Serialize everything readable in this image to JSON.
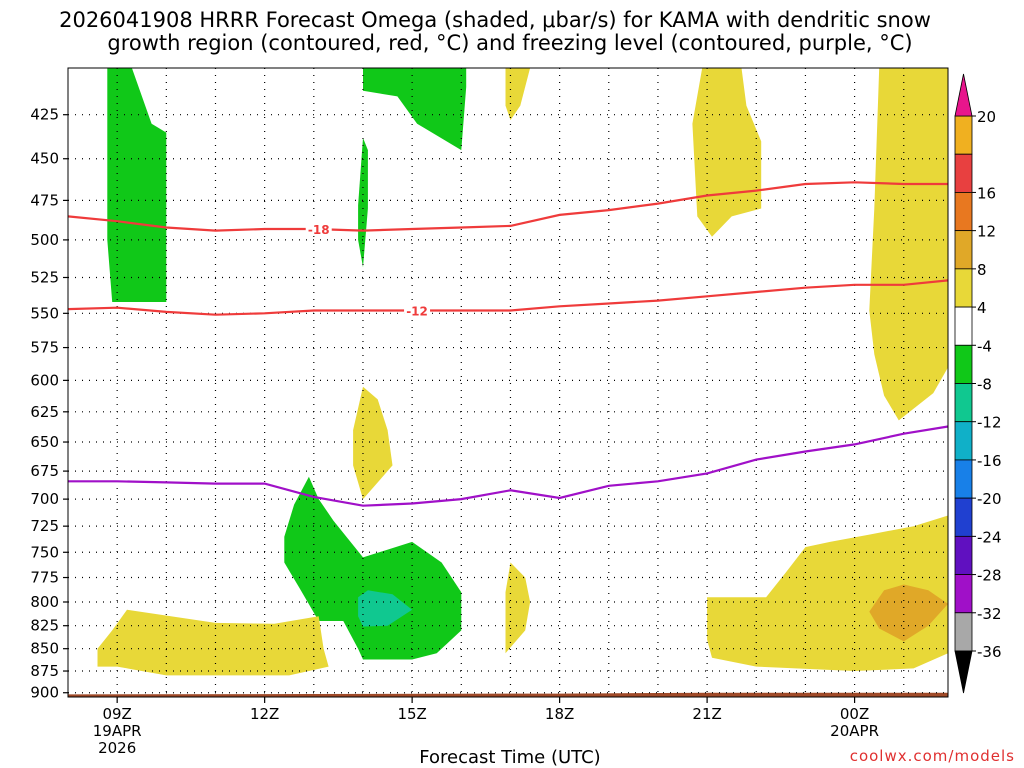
{
  "chart_data": {
    "type": "contour",
    "title_line1": "2026041908 HRRR Forecast Omega (shaded, μbar/s) for KAMA with dendritic snow",
    "title_line2": "growth region (contoured, red, °C) and freezing level (contoured, purple, °C)",
    "xlabel": "Forecast Time (UTC)",
    "credit": "coolwx.com/models",
    "x_range_hours": [
      8,
      25.9
    ],
    "y_range_hpa": [
      400,
      905
    ],
    "x_ticks": [
      {
        "hour": 9,
        "lines": [
          "09Z",
          "19APR",
          "2026"
        ]
      },
      {
        "hour": 12,
        "lines": [
          "12Z"
        ]
      },
      {
        "hour": 15,
        "lines": [
          "15Z"
        ]
      },
      {
        "hour": 18,
        "lines": [
          "18Z"
        ]
      },
      {
        "hour": 21,
        "lines": [
          "21Z"
        ]
      },
      {
        "hour": 24,
        "lines": [
          "00Z",
          "20APR"
        ]
      }
    ],
    "y_ticks": [
      "425",
      "450",
      "475",
      "500",
      "525",
      "550",
      "575",
      "600",
      "625",
      "650",
      "675",
      "700",
      "725",
      "750",
      "775",
      "800",
      "825",
      "850",
      "875",
      "900"
    ],
    "colorbar": {
      "labels": [
        "20",
        "16",
        "12",
        "8",
        "4",
        "-4",
        "-8",
        "-12",
        "-16",
        "-20",
        "-24",
        "-28",
        "-32",
        "-36"
      ],
      "colors": [
        "#f0b020",
        "#e84040",
        "#e87820",
        "#e0a828",
        "#e8d838",
        "#ffffff",
        "#10c818",
        "#10c890",
        "#10b0c8",
        "#1880e8",
        "#2040d0",
        "#6010c0",
        "#a010c8",
        "#a8a8a8"
      ],
      "top_arrow_color": "#e8158c",
      "bottom_arrow_color": "#000000"
    },
    "contours": [
      {
        "label": "-18",
        "color": "#ef3b3b",
        "kind": "dendritic",
        "points": [
          [
            8,
            485
          ],
          [
            9,
            488
          ],
          [
            10,
            492
          ],
          [
            11,
            494
          ],
          [
            12,
            493
          ],
          [
            13,
            493
          ],
          [
            14,
            494
          ],
          [
            15,
            493
          ],
          [
            16,
            492
          ],
          [
            17,
            491
          ],
          [
            18,
            484
          ],
          [
            19,
            481
          ],
          [
            20,
            477
          ],
          [
            21,
            472
          ],
          [
            22,
            469
          ],
          [
            23,
            465
          ],
          [
            24,
            464
          ],
          [
            25,
            465
          ],
          [
            25.9,
            465
          ]
        ],
        "label_at": [
          13.1,
          493
        ]
      },
      {
        "label": "-12",
        "color": "#ef3b3b",
        "kind": "dendritic",
        "points": [
          [
            8,
            547
          ],
          [
            9,
            546
          ],
          [
            10,
            549
          ],
          [
            11,
            551
          ],
          [
            12,
            550
          ],
          [
            13,
            548
          ],
          [
            14,
            548
          ],
          [
            15,
            548
          ],
          [
            16,
            548
          ],
          [
            17,
            548
          ],
          [
            18,
            545
          ],
          [
            19,
            543
          ],
          [
            20,
            541
          ],
          [
            21,
            538
          ],
          [
            22,
            535
          ],
          [
            23,
            532
          ],
          [
            24,
            530
          ],
          [
            25,
            530
          ],
          [
            25.9,
            527
          ]
        ],
        "label_at": [
          15.1,
          548
        ]
      },
      {
        "label": "",
        "color": "#a010c8",
        "kind": "freezing",
        "points": [
          [
            8,
            684
          ],
          [
            9,
            684
          ],
          [
            10,
            685
          ],
          [
            11,
            686
          ],
          [
            12,
            686
          ],
          [
            13,
            698
          ],
          [
            14,
            706
          ],
          [
            15,
            704
          ],
          [
            16,
            700
          ],
          [
            17,
            692
          ],
          [
            18,
            699
          ],
          [
            19,
            688
          ],
          [
            20,
            684
          ],
          [
            21,
            677
          ],
          [
            22,
            665
          ],
          [
            23,
            658
          ],
          [
            24,
            652
          ],
          [
            25,
            643
          ],
          [
            25.9,
            637
          ]
        ]
      }
    ],
    "fill_regions": [
      {
        "level": "-8 to -4",
        "color": "#10c818",
        "points": [
          [
            8.8,
            400
          ],
          [
            9.3,
            400
          ],
          [
            9.7,
            430
          ],
          [
            10,
            435
          ],
          [
            10,
            542
          ],
          [
            8.9,
            542
          ],
          [
            8.8,
            500
          ]
        ]
      },
      {
        "level": "-8 to -4",
        "color": "#10c818",
        "points": [
          [
            13.9,
            478
          ],
          [
            14,
            438
          ],
          [
            14.1,
            445
          ],
          [
            14.1,
            480
          ],
          [
            14,
            518
          ],
          [
            13.9,
            500
          ]
        ]
      },
      {
        "level": "-8 to -4",
        "color": "#10c818",
        "points": [
          [
            14,
            400
          ],
          [
            16.1,
            400
          ],
          [
            16.1,
            410
          ],
          [
            16,
            445
          ],
          [
            15.1,
            430
          ],
          [
            14.7,
            415
          ],
          [
            14,
            412
          ]
        ]
      },
      {
        "level": "-8 to -4",
        "color": "#10c818",
        "points": [
          [
            12.4,
            735
          ],
          [
            12.6,
            705
          ],
          [
            12.9,
            680
          ],
          [
            13.1,
            700
          ],
          [
            13.4,
            720
          ],
          [
            14,
            755
          ],
          [
            15,
            740
          ],
          [
            15.6,
            760
          ],
          [
            16,
            790
          ],
          [
            16,
            830
          ],
          [
            15.5,
            855
          ],
          [
            15,
            862
          ],
          [
            14,
            862
          ],
          [
            13.9,
            850
          ],
          [
            13.6,
            820
          ],
          [
            13.1,
            820
          ],
          [
            12.7,
            785
          ],
          [
            12.4,
            760
          ]
        ]
      },
      {
        "level": "-12 to -8",
        "color": "#10c890",
        "points": [
          [
            13.9,
            795
          ],
          [
            14.1,
            788
          ],
          [
            14.6,
            792
          ],
          [
            15,
            808
          ],
          [
            14.5,
            825
          ],
          [
            14,
            826
          ],
          [
            13.9,
            815
          ]
        ]
      },
      {
        "level": "4 to 8",
        "color": "#e8d838",
        "points": [
          [
            25.9,
            400
          ],
          [
            24.5,
            400
          ],
          [
            24.4,
            480
          ],
          [
            24.3,
            548
          ],
          [
            24.4,
            580
          ],
          [
            24.6,
            612
          ],
          [
            24.9,
            632
          ],
          [
            25.6,
            610
          ],
          [
            25.9,
            590
          ]
        ]
      },
      {
        "level": "4 to 8",
        "color": "#e8d838",
        "points": [
          [
            21.7,
            400
          ],
          [
            21.8,
            420
          ],
          [
            22.1,
            440
          ],
          [
            22.1,
            480
          ],
          [
            21.5,
            485
          ],
          [
            21.1,
            498
          ],
          [
            20.8,
            485
          ],
          [
            20.7,
            430
          ],
          [
            20.9,
            400
          ]
        ]
      },
      {
        "level": "4 to 8",
        "color": "#e8d838",
        "points": [
          [
            16.9,
            400
          ],
          [
            17.4,
            400
          ],
          [
            17.2,
            420
          ],
          [
            17,
            428
          ],
          [
            16.9,
            420
          ]
        ]
      },
      {
        "level": "4 to 8",
        "color": "#e8d838",
        "points": [
          [
            13.8,
            640
          ],
          [
            14,
            605
          ],
          [
            14.3,
            615
          ],
          [
            14.5,
            640
          ],
          [
            14.6,
            670
          ],
          [
            14.2,
            690
          ],
          [
            14,
            700
          ],
          [
            13.8,
            670
          ]
        ]
      },
      {
        "level": "4 to 8",
        "color": "#e8d838",
        "points": [
          [
            16.9,
            790
          ],
          [
            17,
            760
          ],
          [
            17.3,
            775
          ],
          [
            17.4,
            800
          ],
          [
            17.3,
            830
          ],
          [
            16.9,
            855
          ],
          [
            16.9,
            820
          ]
        ]
      },
      {
        "level": "4 to 8",
        "color": "#e8d838",
        "points": [
          [
            8.6,
            850
          ],
          [
            8.9,
            830
          ],
          [
            9.2,
            808
          ],
          [
            11,
            822
          ],
          [
            12.2,
            823
          ],
          [
            13.1,
            815
          ],
          [
            13.2,
            850
          ],
          [
            13.3,
            870
          ],
          [
            12.5,
            880
          ],
          [
            10,
            880
          ],
          [
            9,
            870
          ],
          [
            8.6,
            870
          ]
        ]
      },
      {
        "level": "4 to 8",
        "color": "#e8d838",
        "points": [
          [
            21,
            795
          ],
          [
            22.2,
            795
          ],
          [
            22.6,
            770
          ],
          [
            23,
            745
          ],
          [
            23.5,
            740
          ],
          [
            24.3,
            733
          ],
          [
            25.2,
            725
          ],
          [
            25.9,
            715
          ],
          [
            25.9,
            855
          ],
          [
            25.2,
            872
          ],
          [
            24,
            875
          ],
          [
            22,
            870
          ],
          [
            21.1,
            860
          ],
          [
            21,
            840
          ]
        ]
      },
      {
        "level": "8 to 12",
        "color": "#e0a828",
        "points": [
          [
            24.3,
            810
          ],
          [
            24.6,
            788
          ],
          [
            25,
            782
          ],
          [
            25.5,
            788
          ],
          [
            25.9,
            802
          ],
          [
            25.5,
            825
          ],
          [
            25,
            842
          ],
          [
            24.5,
            828
          ]
        ]
      }
    ]
  }
}
